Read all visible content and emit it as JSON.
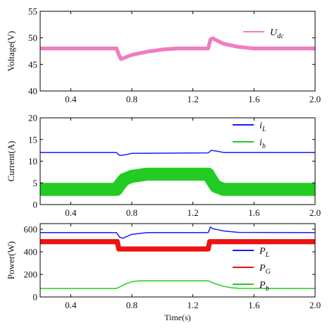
{
  "chart_data": [
    {
      "type": "line",
      "ylabel": "Voltage(V)",
      "xlim": [
        0.2,
        2.0
      ],
      "ylim": [
        40,
        55
      ],
      "xticks": [
        "0.4",
        "0.8",
        "1.2",
        "1.6",
        "2.0"
      ],
      "yticks": [
        "40",
        "45",
        "50",
        "55"
      ],
      "legend_position": "top-right",
      "series": [
        {
          "name": "U",
          "name_sub": "dc",
          "color": "#f07cc0",
          "band": 0.7,
          "x": [
            0.2,
            0.7,
            0.715,
            0.73,
            0.8,
            0.9,
            1.0,
            1.1,
            1.3,
            1.315,
            1.33,
            1.4,
            1.5,
            1.6,
            2.0
          ],
          "y": [
            48,
            48,
            46.8,
            46,
            46.8,
            47.4,
            47.8,
            48,
            48,
            49.7,
            49.9,
            48.9,
            48.3,
            48,
            48
          ]
        }
      ]
    },
    {
      "type": "line",
      "ylabel": "Current(A)",
      "xlim": [
        0.2,
        2.0
      ],
      "ylim": [
        0,
        20
      ],
      "xticks": [
        "0.4",
        "0.8",
        "1.2",
        "1.6",
        "2.0"
      ],
      "yticks": [
        "0",
        "5",
        "10",
        "15",
        "20"
      ],
      "legend_position": "top-right",
      "series": [
        {
          "name": "i",
          "name_sub": "L",
          "color": "#1a1aff",
          "band": 0.2,
          "x": [
            0.2,
            0.7,
            0.72,
            0.76,
            0.8,
            1.3,
            1.32,
            1.36,
            1.4,
            2.0
          ],
          "y": [
            12,
            12,
            11.3,
            11.5,
            11.8,
            11.9,
            12.5,
            12.3,
            12,
            12
          ]
        },
        {
          "name": "i",
          "name_sub": "b",
          "color": "#22cc22",
          "band": 3.0,
          "x": [
            0.2,
            0.7,
            0.72,
            0.75,
            0.8,
            0.9,
            1.3,
            1.32,
            1.35,
            1.4,
            2.0
          ],
          "y": [
            3.5,
            3.5,
            4.5,
            5.8,
            6.5,
            7,
            7,
            5.8,
            4.2,
            3.5,
            3.5
          ]
        }
      ]
    },
    {
      "type": "line",
      "ylabel": "Power(W)",
      "xlabel": "Time(s)",
      "xlim": [
        0.2,
        2.0
      ],
      "ylim": [
        0,
        650
      ],
      "xticks": [
        "0.4",
        "0.8",
        "1.2",
        "1.6",
        "2.0"
      ],
      "yticks": [
        "0",
        "200",
        "400",
        "600"
      ],
      "legend_position": "bottom-right",
      "series": [
        {
          "name": "P",
          "name_sub": "L",
          "color": "#1a1aff",
          "band": 4,
          "x": [
            0.2,
            0.7,
            0.72,
            0.74,
            0.8,
            0.9,
            1.3,
            1.315,
            1.33,
            1.4,
            1.5,
            2.0
          ],
          "y": [
            570,
            570,
            530,
            520,
            555,
            570,
            570,
            620,
            605,
            585,
            572,
            570
          ]
        },
        {
          "name": "P",
          "name_sub": "G",
          "color": "#ee1111",
          "band": 45,
          "x": [
            0.2,
            0.705,
            0.715,
            1.3,
            1.31,
            2.0
          ],
          "y": [
            490,
            490,
            425,
            425,
            490,
            490
          ]
        },
        {
          "name": "P",
          "name_sub": "b",
          "color": "#22cc22",
          "band": 3,
          "x": [
            0.2,
            0.7,
            0.75,
            0.8,
            0.85,
            1.3,
            1.35,
            1.4,
            1.45,
            1.5,
            2.0
          ],
          "y": [
            75,
            75,
            110,
            135,
            143,
            143,
            115,
            95,
            82,
            76,
            75
          ]
        }
      ]
    }
  ]
}
